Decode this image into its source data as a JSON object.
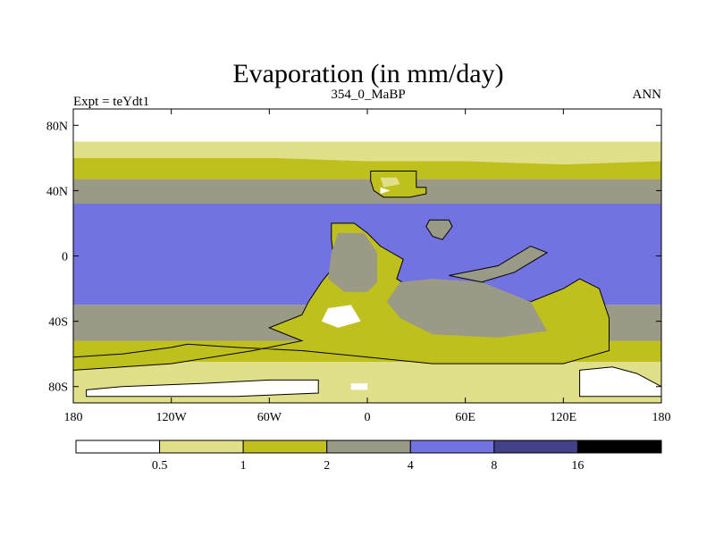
{
  "chart_data": {
    "type": "heatmap",
    "title": "Evaporation (in mm/day)",
    "subtitle_left": "Expt = teYdt1",
    "subtitle_center": "354_0_MaBP",
    "subtitle_right": "ANN",
    "x_ticks": [
      {
        "value": -180,
        "label": "180"
      },
      {
        "value": -120,
        "label": "120W"
      },
      {
        "value": -60,
        "label": "60W"
      },
      {
        "value": 0,
        "label": "0"
      },
      {
        "value": 60,
        "label": "60E"
      },
      {
        "value": 120,
        "label": "120E"
      },
      {
        "value": 180,
        "label": "180"
      }
    ],
    "y_ticks": [
      {
        "value": 80,
        "label": "80N"
      },
      {
        "value": 40,
        "label": "40N"
      },
      {
        "value": 0,
        "label": "0"
      },
      {
        "value": -40,
        "label": "40S"
      },
      {
        "value": -80,
        "label": "80S"
      }
    ],
    "xlim": [
      -180,
      180
    ],
    "ylim": [
      -90,
      90
    ],
    "units": "mm/day",
    "colorbar": {
      "levels": [
        "0.5",
        "1",
        "2",
        "4",
        "8",
        "16"
      ],
      "colors": [
        "#ffffff",
        "#e0e08a",
        "#bfbf1e",
        "#9a9a86",
        "#7272e0",
        "#42428a",
        "#000000"
      ]
    },
    "zonal_bands": [
      {
        "lat_from": 90,
        "lat_to": 70,
        "range": "<0.5"
      },
      {
        "lat_from": 70,
        "lat_to": 60,
        "range": "0.5-1"
      },
      {
        "lat_from": 60,
        "lat_to": 47,
        "range": "1-2"
      },
      {
        "lat_from": 47,
        "lat_to": 32,
        "range": "2-4"
      },
      {
        "lat_from": 32,
        "lat_to": -30,
        "range": "4-8"
      },
      {
        "lat_from": -30,
        "lat_to": -52,
        "range": "2-4"
      },
      {
        "lat_from": -52,
        "lat_to": -65,
        "range": "1-2"
      },
      {
        "lat_from": -65,
        "lat_to": -90,
        "range": "0.5-1"
      }
    ]
  }
}
